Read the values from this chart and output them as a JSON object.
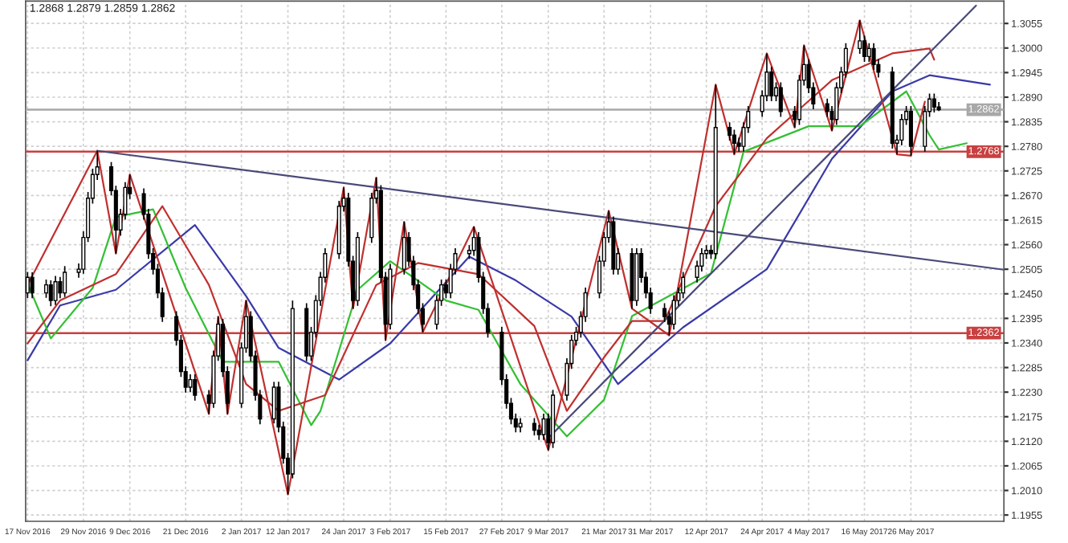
{
  "chart_data": {
    "type": "candlestick",
    "annotations": [
      "1.2868 1.2879 1.2859 1.2862"
    ],
    "x": [
      "2016-11-17",
      "2016-11-18",
      "2016-11-21",
      "2016-11-22",
      "2016-11-23",
      "2016-11-24",
      "2016-11-25",
      "2016-11-28",
      "2016-11-29",
      "2016-11-30",
      "2016-12-01",
      "2016-12-02",
      "2016-12-05",
      "2016-12-06",
      "2016-12-07",
      "2016-12-08",
      "2016-12-09",
      "2016-12-12",
      "2016-12-13",
      "2016-12-14",
      "2016-12-15",
      "2016-12-16",
      "2016-12-19",
      "2016-12-20",
      "2016-12-21",
      "2016-12-22",
      "2016-12-23",
      "2016-12-26",
      "2016-12-27",
      "2016-12-28",
      "2016-12-29",
      "2016-12-30",
      "2017-01-02",
      "2017-01-03",
      "2017-01-04",
      "2017-01-05",
      "2017-01-06",
      "2017-01-09",
      "2017-01-10",
      "2017-01-11",
      "2017-01-12",
      "2017-01-13",
      "2017-01-16",
      "2017-01-17",
      "2017-01-18",
      "2017-01-19",
      "2017-01-20",
      "2017-01-23",
      "2017-01-24",
      "2017-01-25",
      "2017-01-26",
      "2017-01-27",
      "2017-01-30",
      "2017-01-31",
      "2017-02-01",
      "2017-02-02",
      "2017-02-03",
      "2017-02-06",
      "2017-02-07",
      "2017-02-08",
      "2017-02-09",
      "2017-02-10",
      "2017-02-13",
      "2017-02-14",
      "2017-02-15",
      "2017-02-16",
      "2017-02-17",
      "2017-02-20",
      "2017-02-21",
      "2017-02-22",
      "2017-02-23",
      "2017-02-24",
      "2017-02-27",
      "2017-02-28",
      "2017-03-01",
      "2017-03-02",
      "2017-03-03",
      "2017-03-06",
      "2017-03-07",
      "2017-03-08",
      "2017-03-09",
      "2017-03-10",
      "2017-03-13",
      "2017-03-14",
      "2017-03-15",
      "2017-03-16",
      "2017-03-17",
      "2017-03-20",
      "2017-03-21",
      "2017-03-22",
      "2017-03-23",
      "2017-03-24",
      "2017-03-27",
      "2017-03-28",
      "2017-03-29",
      "2017-03-30",
      "2017-03-31",
      "2017-04-03",
      "2017-04-04",
      "2017-04-05",
      "2017-04-06",
      "2017-04-07",
      "2017-04-10",
      "2017-04-11",
      "2017-04-12",
      "2017-04-13",
      "2017-04-14",
      "2017-04-17",
      "2017-04-18",
      "2017-04-19",
      "2017-04-20",
      "2017-04-21",
      "2017-04-24",
      "2017-04-25",
      "2017-04-26",
      "2017-04-27",
      "2017-04-28",
      "2017-05-01",
      "2017-05-02",
      "2017-05-03",
      "2017-05-04",
      "2017-05-05",
      "2017-05-08",
      "2017-05-09",
      "2017-05-10",
      "2017-05-11",
      "2017-05-12",
      "2017-05-15",
      "2017-05-16",
      "2017-05-17",
      "2017-05-18",
      "2017-05-19",
      "2017-05-22",
      "2017-05-23",
      "2017-05-24",
      "2017-05-25",
      "2017-05-26",
      "2017-05-29",
      "2017-05-30",
      "2017-05-31",
      "2017-06-01"
    ],
    "ohlc": [
      [
        1.2452,
        1.2499,
        1.244,
        1.2487
      ],
      [
        1.2487,
        1.2498,
        1.244,
        1.2452
      ],
      [
        1.2452,
        1.2482,
        1.2441,
        1.247
      ],
      [
        1.247,
        1.248,
        1.2422,
        1.2435
      ],
      [
        1.2435,
        1.249,
        1.2425,
        1.2477
      ],
      [
        1.2477,
        1.2488,
        1.244,
        1.2452
      ],
      [
        1.2452,
        1.2512,
        1.2443,
        1.2498
      ],
      [
        1.2498,
        1.2518,
        1.2486,
        1.2505
      ],
      [
        1.2505,
        1.259,
        1.2495,
        1.2576
      ],
      [
        1.2576,
        1.2678,
        1.2566,
        1.2664
      ],
      [
        1.2664,
        1.273,
        1.2652,
        1.2717
      ],
      [
        1.2717,
        1.277,
        1.2705,
        1.2734
      ],
      [
        1.2734,
        1.2745,
        1.267,
        1.2681
      ],
      [
        1.2681,
        1.2692,
        1.254,
        1.2593
      ],
      [
        1.2593,
        1.264,
        1.258,
        1.2628
      ],
      [
        1.2628,
        1.27,
        1.2616,
        1.2688
      ],
      [
        1.2688,
        1.2717,
        1.2662,
        1.2674
      ],
      [
        1.2674,
        1.2686,
        1.2616,
        1.2628
      ],
      [
        1.2628,
        1.264,
        1.2528,
        1.254
      ],
      [
        1.254,
        1.2552,
        1.2493,
        1.2505
      ],
      [
        1.2505,
        1.2517,
        1.244,
        1.2452
      ],
      [
        1.2452,
        1.2464,
        1.2387,
        1.2399
      ],
      [
        1.2399,
        1.2411,
        1.2334,
        1.2346
      ],
      [
        1.2346,
        1.2358,
        1.2264,
        1.2276
      ],
      [
        1.2276,
        1.2288,
        1.2229,
        1.2241
      ],
      [
        1.2241,
        1.227,
        1.223,
        1.2258
      ],
      [
        1.2258,
        1.227,
        1.2211,
        1.2223
      ],
      [
        1.2223,
        1.2235,
        1.2181,
        1.2205
      ],
      [
        1.2205,
        1.2323,
        1.2195,
        1.2311
      ],
      [
        1.2311,
        1.2399,
        1.23,
        1.2382
      ],
      [
        1.2382,
        1.2394,
        1.2264,
        1.2276
      ],
      [
        1.2276,
        1.2288,
        1.2181,
        1.2205
      ],
      [
        1.2205,
        1.2341,
        1.2195,
        1.2329
      ],
      [
        1.2329,
        1.2435,
        1.2318,
        1.2399
      ],
      [
        1.2399,
        1.2411,
        1.2299,
        1.2311
      ],
      [
        1.2311,
        1.2323,
        1.2211,
        1.2223
      ],
      [
        1.2223,
        1.2235,
        1.2158,
        1.217
      ],
      [
        1.217,
        1.2253,
        1.216,
        1.2241
      ],
      [
        1.2241,
        1.2253,
        1.214,
        1.2152
      ],
      [
        1.2152,
        1.2164,
        1.207,
        1.2082
      ],
      [
        1.2082,
        1.2094,
        1.2001,
        1.2047
      ],
      [
        1.2047,
        1.2435,
        1.2037,
        1.2417
      ],
      [
        1.2417,
        1.2429,
        1.2299,
        1.2311
      ],
      [
        1.2311,
        1.2376,
        1.23,
        1.2364
      ],
      [
        1.2364,
        1.2447,
        1.2352,
        1.2435
      ],
      [
        1.2435,
        1.2499,
        1.2423,
        1.2487
      ],
      [
        1.2487,
        1.2552,
        1.2475,
        1.254
      ],
      [
        1.254,
        1.2658,
        1.2528,
        1.2646
      ],
      [
        1.2646,
        1.2688,
        1.2634,
        1.2664
      ],
      [
        1.2664,
        1.2676,
        1.2511,
        1.2523
      ],
      [
        1.2523,
        1.2535,
        1.2417,
        1.2435
      ],
      [
        1.2435,
        1.2588,
        1.2423,
        1.2576
      ],
      [
        1.2576,
        1.2676,
        1.2564,
        1.2664
      ],
      [
        1.2664,
        1.271,
        1.2652,
        1.2681
      ],
      [
        1.2681,
        1.2693,
        1.2475,
        1.2487
      ],
      [
        1.2487,
        1.2499,
        1.2346,
        1.2382
      ],
      [
        1.2382,
        1.2517,
        1.237,
        1.2505
      ],
      [
        1.2505,
        1.2611,
        1.2493,
        1.2576
      ],
      [
        1.2576,
        1.2588,
        1.2511,
        1.2523
      ],
      [
        1.2523,
        1.2535,
        1.2458,
        1.247
      ],
      [
        1.247,
        1.2482,
        1.2405,
        1.2417
      ],
      [
        1.2417,
        1.2429,
        1.2364,
        1.2382
      ],
      [
        1.2382,
        1.2447,
        1.237,
        1.2435
      ],
      [
        1.2435,
        1.2482,
        1.2423,
        1.247
      ],
      [
        1.247,
        1.2482,
        1.244,
        1.2452
      ],
      [
        1.2452,
        1.2517,
        1.244,
        1.2505
      ],
      [
        1.2505,
        1.2552,
        1.2493,
        1.254
      ],
      [
        1.254,
        1.2559,
        1.2528,
        1.2547
      ],
      [
        1.2547,
        1.26,
        1.2535,
        1.2576
      ],
      [
        1.2576,
        1.2588,
        1.2475,
        1.2487
      ],
      [
        1.2487,
        1.2499,
        1.2405,
        1.2417
      ],
      [
        1.2417,
        1.2429,
        1.2352,
        1.2364
      ],
      [
        1.2364,
        1.2376,
        1.2246,
        1.2258
      ],
      [
        1.2258,
        1.227,
        1.2193,
        1.2205
      ],
      [
        1.2205,
        1.2217,
        1.2158,
        1.217
      ],
      [
        1.217,
        1.2182,
        1.214,
        1.2152
      ],
      [
        1.2152,
        1.2172,
        1.214,
        1.216
      ],
      [
        1.216,
        1.2172,
        1.2133,
        1.2145
      ],
      [
        1.2145,
        1.2157,
        1.2123,
        1.2135
      ],
      [
        1.2135,
        1.2182,
        1.2123,
        1.217
      ],
      [
        1.217,
        1.2182,
        1.21,
        1.2117
      ],
      [
        1.2117,
        1.2235,
        1.2105,
        1.2223
      ],
      [
        1.2223,
        1.2306,
        1.2211,
        1.2294
      ],
      [
        1.2294,
        1.2358,
        1.2282,
        1.2346
      ],
      [
        1.2346,
        1.2376,
        1.2334,
        1.2364
      ],
      [
        1.2364,
        1.2411,
        1.2352,
        1.2399
      ],
      [
        1.2399,
        1.2464,
        1.2387,
        1.2452
      ],
      [
        1.2452,
        1.2535,
        1.244,
        1.2523
      ],
      [
        1.2523,
        1.2588,
        1.2511,
        1.2576
      ],
      [
        1.2576,
        1.2636,
        1.2564,
        1.2611
      ],
      [
        1.2611,
        1.2623,
        1.2493,
        1.2505
      ],
      [
        1.2505,
        1.2552,
        1.2493,
        1.254
      ],
      [
        1.254,
        1.2552,
        1.2417,
        1.2435
      ],
      [
        1.2435,
        1.2552,
        1.2423,
        1.254
      ],
      [
        1.254,
        1.2552,
        1.2475,
        1.2487
      ],
      [
        1.2487,
        1.2499,
        1.244,
        1.2452
      ],
      [
        1.2452,
        1.2464,
        1.2405,
        1.2417
      ],
      [
        1.2417,
        1.2429,
        1.2387,
        1.2399
      ],
      [
        1.2399,
        1.2411,
        1.2357,
        1.2382
      ],
      [
        1.2382,
        1.2447,
        1.237,
        1.2435
      ],
      [
        1.2435,
        1.2464,
        1.2423,
        1.2452
      ],
      [
        1.2452,
        1.2499,
        1.244,
        1.2487
      ],
      [
        1.2487,
        1.2524,
        1.2475,
        1.2512
      ],
      [
        1.2512,
        1.2552,
        1.25,
        1.254
      ],
      [
        1.254,
        1.2559,
        1.2528,
        1.2547
      ],
      [
        1.2547,
        1.2559,
        1.2528,
        1.254
      ],
      [
        1.254,
        1.2918,
        1.2528,
        1.2822
      ],
      [
        1.2822,
        1.2834,
        1.2793,
        1.2805
      ],
      [
        1.2805,
        1.2817,
        1.2762,
        1.2787
      ],
      [
        1.2787,
        1.2799,
        1.2768,
        1.278
      ],
      [
        1.278,
        1.2834,
        1.2768,
        1.2822
      ],
      [
        1.2822,
        1.287,
        1.281,
        1.2858
      ],
      [
        1.2858,
        1.2905,
        1.2846,
        1.2893
      ],
      [
        1.2893,
        1.2988,
        1.2881,
        1.2946
      ],
      [
        1.2946,
        1.2958,
        1.2881,
        1.2893
      ],
      [
        1.2893,
        1.2923,
        1.2881,
        1.2911
      ],
      [
        1.2911,
        1.2923,
        1.2846,
        1.2858
      ],
      [
        1.2858,
        1.287,
        1.2822,
        1.284
      ],
      [
        1.284,
        1.294,
        1.2828,
        1.2928
      ],
      [
        1.2928,
        1.3006,
        1.2916,
        1.2963
      ],
      [
        1.2963,
        1.2975,
        1.2899,
        1.2911
      ],
      [
        1.2911,
        1.2923,
        1.2863,
        1.2875
      ],
      [
        1.2875,
        1.2887,
        1.2846,
        1.2858
      ],
      [
        1.2858,
        1.287,
        1.2815,
        1.284
      ],
      [
        1.284,
        1.2923,
        1.2828,
        1.2911
      ],
      [
        1.2911,
        1.2958,
        1.2899,
        1.2946
      ],
      [
        1.2946,
        1.3011,
        1.2934,
        1.2999
      ],
      [
        1.2999,
        1.3062,
        1.2987,
        1.3016
      ],
      [
        1.3016,
        1.3028,
        1.2969,
        1.2981
      ],
      [
        1.2981,
        1.3011,
        1.2969,
        1.2999
      ],
      [
        1.2999,
        1.3011,
        1.2951,
        1.2963
      ],
      [
        1.2963,
        1.2975,
        1.2934,
        1.2946
      ],
      [
        1.2946,
        1.2958,
        1.2775,
        1.2787
      ],
      [
        1.2787,
        1.2806,
        1.2762,
        1.2794
      ],
      [
        1.2794,
        1.2852,
        1.2782,
        1.284
      ],
      [
        1.284,
        1.287,
        1.2828,
        1.2858
      ],
      [
        1.2858,
        1.287,
        1.2759,
        1.278
      ],
      [
        1.278,
        1.287,
        1.2768,
        1.2858
      ],
      [
        1.2858,
        1.2898,
        1.2846,
        1.2886
      ],
      [
        1.2886,
        1.2898,
        1.2856,
        1.2868
      ],
      [
        1.2868,
        1.2879,
        1.2859,
        1.2862
      ]
    ],
    "series": [
      {
        "type": "line",
        "color": "#3a3aa8",
        "x": [
          "2016-11-17",
          "2016-11-24",
          "2016-12-06",
          "2016-12-23",
          "2017-01-03",
          "2017-01-10",
          "2017-01-23",
          "2017-02-03",
          "2017-02-20",
          "2017-03-02",
          "2017-03-14",
          "2017-03-24",
          "2017-04-07",
          "2017-04-25",
          "2017-05-09",
          "2017-05-22",
          "2017-05-30",
          "2017-06-12"
        ],
        "values": [
          1.2301,
          1.2424,
          1.2459,
          1.2604,
          1.2445,
          1.2329,
          1.2258,
          1.2339,
          1.2533,
          1.248,
          1.2399,
          1.2248,
          1.2375,
          1.2505,
          1.2752,
          1.2903,
          1.2939,
          1.2918
        ]
      },
      {
        "type": "line",
        "color": "#33c033",
        "x": [
          "2016-11-17",
          "2016-11-22",
          "2016-12-01",
          "2016-12-06",
          "2016-12-14",
          "2016-12-21",
          "2016-12-29",
          "2017-01-10",
          "2017-01-17",
          "2017-01-19",
          "2017-01-27",
          "2017-02-03",
          "2017-02-15",
          "2017-02-22",
          "2017-03-03",
          "2017-03-13",
          "2017-03-21",
          "2017-03-27",
          "2017-04-13",
          "2017-04-20",
          "2017-05-04",
          "2017-05-15",
          "2017-05-25",
          "2017-05-30",
          "2017-06-01",
          "2017-06-07"
        ],
        "values": [
          1.2473,
          1.235,
          1.2463,
          1.2622,
          1.2639,
          1.2463,
          1.2298,
          1.2298,
          1.2156,
          1.2188,
          1.2459,
          1.2523,
          1.2435,
          1.2414,
          1.2248,
          1.2131,
          1.2213,
          1.24,
          1.2496,
          1.2768,
          1.2825,
          1.2825,
          1.2903,
          1.2805,
          1.2773,
          1.2787
        ]
      },
      {
        "type": "line",
        "color": "#c03030",
        "x": [
          "2016-11-17",
          "2016-11-24",
          "2016-12-06",
          "2016-12-16",
          "2016-12-26",
          "2017-01-03",
          "2017-01-10",
          "2017-01-20",
          "2017-01-31",
          "2017-02-09",
          "2017-02-22",
          "2017-03-06",
          "2017-03-13",
          "2017-03-21",
          "2017-03-27",
          "2017-04-03",
          "2017-04-14",
          "2017-04-25",
          "2017-05-09",
          "2017-05-22",
          "2017-05-30",
          "2017-05-31"
        ],
        "values": [
          1.2339,
          1.2435,
          1.2494,
          1.2646,
          1.247,
          1.2248,
          1.2188,
          1.2223,
          1.247,
          1.2519,
          1.2494,
          1.2378,
          1.2188,
          1.2308,
          1.2389,
          1.2389,
          1.2646,
          1.2798,
          1.2928,
          1.2988,
          1.2999,
          1.2974
        ]
      },
      {
        "type": "line",
        "color": "#c03030",
        "x": [
          "2016-11-17",
          "2016-12-02",
          "2016-12-06",
          "2016-12-09",
          "2016-12-26",
          "2016-12-28",
          "2016-12-30",
          "2017-01-03",
          "2017-01-12",
          "2017-01-24",
          "2017-01-26",
          "2017-01-31",
          "2017-02-02",
          "2017-02-06",
          "2017-02-10",
          "2017-02-21",
          "2017-03-09",
          "2017-03-22",
          "2017-03-27",
          "2017-04-04",
          "2017-04-14",
          "2017-04-18",
          "2017-04-25",
          "2017-05-01",
          "2017-05-03",
          "2017-05-09",
          "2017-05-15",
          "2017-05-23",
          "2017-05-26",
          "2017-05-29"
        ],
        "values": [
          1.247,
          1.277,
          1.254,
          1.2717,
          1.2181,
          1.2399,
          1.2181,
          1.2435,
          1.2001,
          1.2688,
          1.2417,
          1.271,
          1.2346,
          1.2611,
          1.2364,
          1.26,
          1.21,
          1.2636,
          1.2417,
          1.2357,
          1.2918,
          1.2762,
          1.2988,
          1.2822,
          1.3006,
          1.2815,
          1.3062,
          1.2762,
          1.2759,
          1.288
        ]
      },
      {
        "type": "line",
        "color": "#4a4a7a",
        "x": [
          "2016-12-02",
          "2017-06-15"
        ],
        "values": [
          1.277,
          1.2504
        ]
      },
      {
        "type": "line",
        "color": "#4a4a7a",
        "x": [
          "2017-03-09",
          "2017-06-09"
        ],
        "values": [
          1.2127,
          1.3095
        ]
      }
    ],
    "xlim": [
      "2016-11-16T14:00",
      "2017-06-15"
    ],
    "xticks": [
      {
        "value": "2016-11-17",
        "label": "17 Nov 2016"
      },
      {
        "value": "2016-11-29",
        "label": "29 Nov 2016"
      },
      {
        "value": "2016-12-09",
        "label": "9 Dec 2016"
      },
      {
        "value": "2016-12-21",
        "label": "21 Dec 2016"
      },
      {
        "value": "2017-01-02",
        "label": "2 Jan 2017"
      },
      {
        "value": "2017-01-12",
        "label": "12 Jan 2017"
      },
      {
        "value": "2017-01-24",
        "label": "24 Jan 2017"
      },
      {
        "value": "2017-02-03",
        "label": "3 Feb 2017"
      },
      {
        "value": "2017-02-15",
        "label": "15 Feb 2017"
      },
      {
        "value": "2017-02-27",
        "label": "27 Feb 2017"
      },
      {
        "value": "2017-03-09",
        "label": "9 Mar 2017"
      },
      {
        "value": "2017-03-21",
        "label": "21 Mar 2017"
      },
      {
        "value": "2017-03-31",
        "label": "31 Mar 2017"
      },
      {
        "value": "2017-04-12",
        "label": "12 Apr 2017"
      },
      {
        "value": "2017-04-24",
        "label": "24 Apr 2017"
      },
      {
        "value": "2017-05-04",
        "label": "4 May 2017"
      },
      {
        "value": "2017-05-16",
        "label": "16 May 2017"
      },
      {
        "value": "2017-05-26",
        "label": "26 May 2017"
      }
    ],
    "ylim": [
      1.1941,
      1.3105
    ],
    "yticks": [
      {
        "value": 1.1955,
        "label": "1.1955"
      },
      {
        "value": 1.201,
        "label": "1.2010"
      },
      {
        "value": 1.2065,
        "label": "1.2065"
      },
      {
        "value": 1.212,
        "label": "1.2120"
      },
      {
        "value": 1.2175,
        "label": "1.2175"
      },
      {
        "value": 1.223,
        "label": "1.2230"
      },
      {
        "value": 1.2285,
        "label": "1.2285"
      },
      {
        "value": 1.234,
        "label": "1.2340"
      },
      {
        "value": 1.2395,
        "label": "1.2395"
      },
      {
        "value": 1.245,
        "label": "1.2450"
      },
      {
        "value": 1.2505,
        "label": "1.2505"
      },
      {
        "value": 1.256,
        "label": "1.2560"
      },
      {
        "value": 1.2615,
        "label": "1.2615"
      },
      {
        "value": 1.267,
        "label": "1.2670"
      },
      {
        "value": 1.2725,
        "label": "1.2725"
      },
      {
        "value": 1.278,
        "label": "1.2780"
      },
      {
        "value": 1.2835,
        "label": "1.2835"
      },
      {
        "value": 1.289,
        "label": "1.2890"
      },
      {
        "value": 1.2945,
        "label": "1.2945"
      },
      {
        "value": 1.3,
        "label": "1.3000"
      },
      {
        "value": 1.3055,
        "label": "1.3055"
      }
    ],
    "ref_lines": [
      {
        "axis": "y",
        "value": 1.2768,
        "label": "1.2768",
        "color": "#c84040"
      },
      {
        "axis": "y",
        "value": 1.2362,
        "label": "1.2362",
        "color": "#c84040"
      },
      {
        "axis": "y",
        "value": 1.2862,
        "label": "1.2862",
        "color": "#a8a8a8"
      }
    ],
    "grid": true
  }
}
